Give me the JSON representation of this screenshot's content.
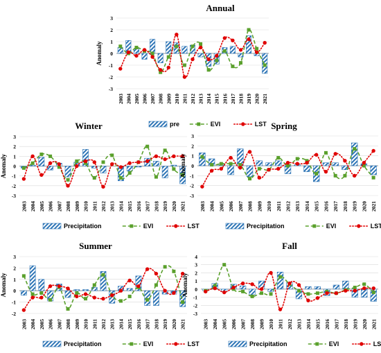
{
  "chart_data": [
    {
      "type": "bar+line",
      "title": "Annual",
      "ylabel": "Anomaly",
      "ylim": [
        -3,
        3
      ],
      "yticks": [
        -3,
        -2,
        -1,
        0,
        1,
        2,
        3
      ],
      "categories": [
        "2003",
        "2004",
        "2005",
        "2006",
        "2007",
        "2008",
        "2009",
        "2010",
        "2011",
        "2012",
        "2013",
        "2014",
        "2015",
        "2016",
        "2017",
        "2018",
        "2019",
        "2020",
        "2021"
      ],
      "series": [
        {
          "name": "pre",
          "kind": "bar",
          "values": [
            0.5,
            1.1,
            0.4,
            -0.5,
            1.2,
            -0.8,
            1.0,
            0.9,
            0.6,
            0.7,
            -0.3,
            -1.1,
            -0.9,
            0.5,
            0.6,
            -0.3,
            1.5,
            -0.2,
            -1.7
          ]
        },
        {
          "name": "EVI",
          "kind": "line-dashed",
          "values": [
            0.6,
            0.0,
            0.5,
            0.2,
            0.0,
            -1.6,
            -0.3,
            0.6,
            -1.0,
            0.6,
            0.8,
            -1.4,
            -0.6,
            0.2,
            -1.1,
            -0.8,
            2.0,
            0.4,
            -1.0
          ]
        },
        {
          "name": "LST",
          "kind": "line-dotted-marker",
          "values": [
            -1.3,
            0.1,
            -0.2,
            0.3,
            -0.3,
            -1.4,
            -1.2,
            1.6,
            -2.0,
            -0.5,
            0.5,
            -0.5,
            -0.2,
            1.3,
            1.1,
            0.3,
            1.2,
            0.1,
            0.9
          ]
        }
      ],
      "legend_position": "bottom"
    },
    {
      "type": "bar+line",
      "title": "Winter",
      "ylabel": "Anomaly",
      "ylim": [
        -3,
        3
      ],
      "yticks": [
        -3,
        -2,
        -1,
        0,
        1,
        2,
        3
      ],
      "categories": [
        "2003",
        "2004",
        "2005",
        "2006",
        "2007",
        "2008",
        "2009",
        "2010",
        "2011",
        "2012",
        "2013",
        "2014",
        "2015",
        "2016",
        "2017",
        "2018",
        "2019",
        "2020",
        "2021"
      ],
      "series": [
        {
          "name": "Precipitation",
          "kind": "bar",
          "values": [
            -0.2,
            0.1,
            0.9,
            -0.4,
            0.3,
            -1.1,
            0.4,
            1.7,
            -0.2,
            -0.7,
            0.0,
            -1.5,
            -0.5,
            -0.1,
            0.8,
            0.5,
            -1.2,
            0.1,
            -1.8
          ]
        },
        {
          "name": "EVI",
          "kind": "line-dashed",
          "values": [
            -0.2,
            0.3,
            1.2,
            1.0,
            -0.1,
            -1.4,
            0.5,
            0.3,
            -1.2,
            0.4,
            1.1,
            -1.2,
            -0.7,
            0.4,
            2.0,
            -1.1,
            1.6,
            -0.3,
            -0.9
          ]
        },
        {
          "name": "LST",
          "kind": "line-dotted-marker",
          "values": [
            -1.3,
            1.0,
            -0.9,
            0.3,
            0.2,
            -2.0,
            0.0,
            0.5,
            0.4,
            -2.1,
            0.2,
            -0.1,
            0.3,
            0.4,
            0.5,
            1.0,
            0.7,
            1.0,
            1.0
          ]
        }
      ],
      "legend_position": "bottom"
    },
    {
      "type": "bar+line",
      "title": "Spring",
      "ylabel": "Anomaly",
      "ylim": [
        -3,
        3
      ],
      "yticks": [
        -3,
        -2,
        -1,
        0,
        1,
        2,
        3
      ],
      "categories": [
        "2003",
        "2004",
        "2005",
        "2006",
        "2007",
        "2008",
        "2009",
        "2010",
        "2011",
        "2012",
        "2013",
        "2014",
        "2015",
        "2016",
        "2017",
        "2018",
        "2019",
        "2020",
        "2021"
      ],
      "series": [
        {
          "name": "Precipitation",
          "kind": "bar",
          "values": [
            1.3,
            0.7,
            0.2,
            -0.9,
            1.7,
            -1.1,
            0.5,
            0.3,
            0.5,
            -0.8,
            0.1,
            -0.6,
            -1.6,
            0.3,
            0.3,
            -0.4,
            2.3,
            0.2,
            -0.9
          ]
        },
        {
          "name": "EVI",
          "kind": "line-dashed",
          "values": [
            0.9,
            0.1,
            0.2,
            0.2,
            0.1,
            -1.3,
            -0.3,
            -0.4,
            0.8,
            0.0,
            0.7,
            0.5,
            -0.8,
            1.3,
            -1.0,
            -1.0,
            1.7,
            0.0,
            -1.2
          ]
        },
        {
          "name": "LST",
          "kind": "line-dotted-marker",
          "values": [
            -2.1,
            -0.5,
            -0.3,
            0.8,
            -0.2,
            1.4,
            -1.2,
            -0.4,
            -0.3,
            0.3,
            0.2,
            0.3,
            1.1,
            -0.6,
            1.2,
            0.5,
            -1.0,
            0.3,
            1.5
          ]
        }
      ],
      "legend_position": "bottom"
    },
    {
      "type": "bar+line",
      "title": "Summer",
      "ylabel": "Anomaly",
      "ylim": [
        -2,
        3
      ],
      "yticks": [
        -2,
        -1,
        0,
        1,
        2,
        3
      ],
      "categories": [
        "2003",
        "2004",
        "2005",
        "2006",
        "2007",
        "2008",
        "2009",
        "2010",
        "2011",
        "2012",
        "2013",
        "2014",
        "2015",
        "2016",
        "2017",
        "2018",
        "2019",
        "2020",
        "2021"
      ],
      "series": [
        {
          "name": "Precipitation",
          "kind": "bar",
          "values": [
            -0.4,
            2.2,
            1.0,
            -0.9,
            0.6,
            -0.6,
            0.1,
            0.1,
            0.3,
            1.7,
            -1.1,
            0.4,
            0.2,
            1.3,
            -1.3,
            -1.3,
            -0.3,
            -0.3,
            -1.4
          ]
        },
        {
          "name": "EVI",
          "kind": "line-dashed",
          "values": [
            1.3,
            -0.3,
            -0.2,
            -0.8,
            0.3,
            -1.6,
            -0.2,
            -0.7,
            0.5,
            1.4,
            -0.4,
            -0.9,
            -0.5,
            0.3,
            -0.8,
            0.5,
            2.1,
            1.7,
            -1.0
          ]
        },
        {
          "name": "LST",
          "kind": "line-dotted-marker",
          "values": [
            -1.7,
            -0.6,
            -0.6,
            0.4,
            0.4,
            0.2,
            -0.5,
            -0.3,
            -0.6,
            -0.7,
            -0.4,
            0.0,
            0.9,
            0.4,
            1.9,
            1.5,
            0.0,
            -0.2,
            1.5
          ]
        }
      ],
      "legend_position": "bottom"
    },
    {
      "type": "bar+line",
      "title": "Fall",
      "ylabel": "Anomaly",
      "ylim": [
        -3,
        4
      ],
      "yticks": [
        -3,
        -2,
        -1,
        0,
        1,
        2,
        3,
        4
      ],
      "categories": [
        "2003",
        "2004",
        "2005",
        "2006",
        "2007",
        "2008",
        "2009",
        "2010",
        "2011",
        "2012",
        "2013",
        "2014",
        "2015",
        "2016",
        "2017",
        "2018",
        "2019",
        "2020",
        "2021"
      ],
      "series": [
        {
          "name": "Precipitation",
          "kind": "bar",
          "values": [
            -0.2,
            0.7,
            -0.3,
            0.6,
            0.4,
            -0.7,
            1.0,
            -0.3,
            2.1,
            0.8,
            -1.2,
            0.3,
            0.3,
            -0.8,
            0.5,
            1.0,
            -1.0,
            -1.0,
            -1.5
          ]
        },
        {
          "name": "EVI",
          "kind": "line-dashed",
          "values": [
            -0.2,
            0.4,
            3.0,
            0.0,
            -0.3,
            -0.9,
            -0.5,
            -0.6,
            1.5,
            0.6,
            -0.2,
            -0.6,
            -0.5,
            -0.3,
            -0.5,
            -0.1,
            0.2,
            0.6,
            -0.4
          ]
        },
        {
          "name": "LST",
          "kind": "line-dotted-marker",
          "values": [
            -0.3,
            0.1,
            -0.4,
            0.2,
            0.7,
            0.6,
            0.0,
            2.0,
            -2.5,
            0.7,
            0.5,
            -1.4,
            -1.1,
            -0.5,
            -0.5,
            -0.2,
            -0.2,
            0.1,
            0.1
          ]
        }
      ],
      "legend_position": "bottom"
    }
  ],
  "colors": {
    "precipitation_bar": "#2e75b6",
    "evi": "#5aa02c",
    "lst": "#e00000",
    "gridline": "#d9d9d9",
    "axis": "#7f7f7f"
  }
}
